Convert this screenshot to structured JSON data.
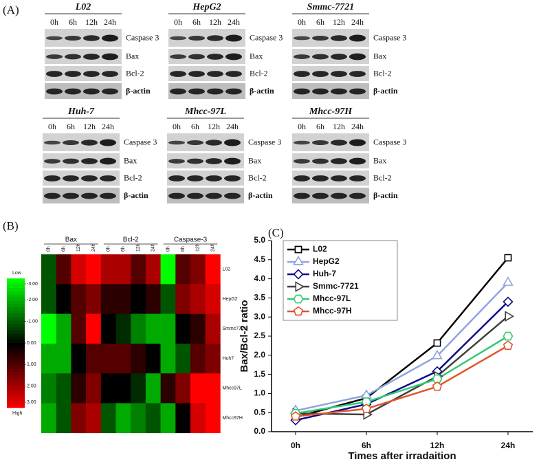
{
  "panel_labels": [
    "(A)",
    "(B)",
    "(C)"
  ],
  "blots": {
    "cell_lines": [
      "L02",
      "HepG2",
      "Smmc-7721",
      "Huh-7",
      "Mhcc-97L",
      "Mhcc-97H"
    ],
    "timepoints": [
      "0h",
      "6h",
      "12h",
      "24h"
    ],
    "proteins": [
      "Caspase 3",
      "Bax",
      "Bcl-2",
      "β-actin"
    ]
  },
  "chart_data": [
    {
      "type": "heatmap",
      "column_groups": [
        "Bax",
        "Bcl-2",
        "Caspase-3"
      ],
      "columns": [
        "0h",
        "6h",
        "12h",
        "24h"
      ],
      "rows": [
        "L02",
        "HepG2",
        "Smmc7721",
        "Huh7",
        "Mhcc97L",
        "Mhcc97H"
      ],
      "values": [
        [
          -1,
          1,
          2.5,
          3,
          2,
          2,
          1,
          2,
          -3,
          1,
          1.5,
          3
        ],
        [
          -1,
          0,
          1,
          1.5,
          0.5,
          0.5,
          0,
          0.5,
          -1,
          1.5,
          2,
          2.5
        ],
        [
          -3,
          -2,
          1,
          3,
          0,
          -0.5,
          -1.5,
          -2,
          -2,
          0,
          0.5,
          2
        ],
        [
          -2,
          -2,
          0,
          1,
          1,
          1,
          0.5,
          0,
          -2,
          -1,
          1,
          1.5
        ],
        [
          -1.5,
          -1,
          0.5,
          1.5,
          0,
          0,
          -0.5,
          -2,
          0.5,
          1.5,
          3,
          3
        ],
        [
          -2,
          -1,
          1.5,
          2,
          -1,
          -2,
          -1.5,
          -1,
          -2,
          0,
          2.5,
          3
        ]
      ],
      "colorbar": {
        "low": "Low",
        "high": "High",
        "ticks": [
          {
            "value": -3,
            "label": "-3.00"
          },
          {
            "value": -2,
            "label": "-2.00"
          },
          {
            "value": -1,
            "label": "-1.00"
          },
          {
            "value": 0,
            "label": "0.00"
          },
          {
            "value": 1,
            "label": "1.00"
          },
          {
            "value": 2,
            "label": "2.00"
          },
          {
            "value": 3,
            "label": "3.00"
          }
        ]
      }
    },
    {
      "type": "line",
      "ylabel": "Bax/Bcl-2 ratio",
      "xlabel": "Times after irradaition",
      "categories": [
        "0h",
        "6h",
        "12h",
        "24h"
      ],
      "ylim": [
        0,
        5
      ],
      "yticks": [
        {
          "value": 0,
          "label": "0.0"
        },
        0.5,
        {
          "value": 1,
          "label": "1.0"
        },
        1.5,
        {
          "value": 2,
          "label": "2.0"
        },
        2.5,
        {
          "value": 3,
          "label": "3.0"
        },
        3.5,
        {
          "value": 4,
          "label": "4.0"
        },
        4.5,
        {
          "value": 5,
          "label": "5.0"
        }
      ],
      "series": [
        {
          "name": "L02",
          "color": "#000000",
          "marker": "square",
          "values": [
            0.38,
            0.88,
            2.32,
            4.55
          ]
        },
        {
          "name": "HepG2",
          "color": "#8fa3e0",
          "marker": "triangle",
          "values": [
            0.55,
            0.95,
            1.98,
            3.9
          ]
        },
        {
          "name": "Huh-7",
          "color": "#0a0a8c",
          "marker": "diamond",
          "values": [
            0.3,
            0.72,
            1.58,
            3.4
          ]
        },
        {
          "name": "Smmc-7721",
          "color": "#404040",
          "marker": "triangle-right",
          "values": [
            0.48,
            0.45,
            1.45,
            3.02
          ]
        },
        {
          "name": "Mhcc-97L",
          "color": "#2ecc71",
          "marker": "hexagon",
          "values": [
            0.48,
            0.78,
            1.38,
            2.5
          ]
        },
        {
          "name": "Mhcc-97H",
          "color": "#e2552a",
          "marker": "pentagon",
          "values": [
            0.4,
            0.6,
            1.18,
            2.25
          ]
        }
      ]
    }
  ]
}
